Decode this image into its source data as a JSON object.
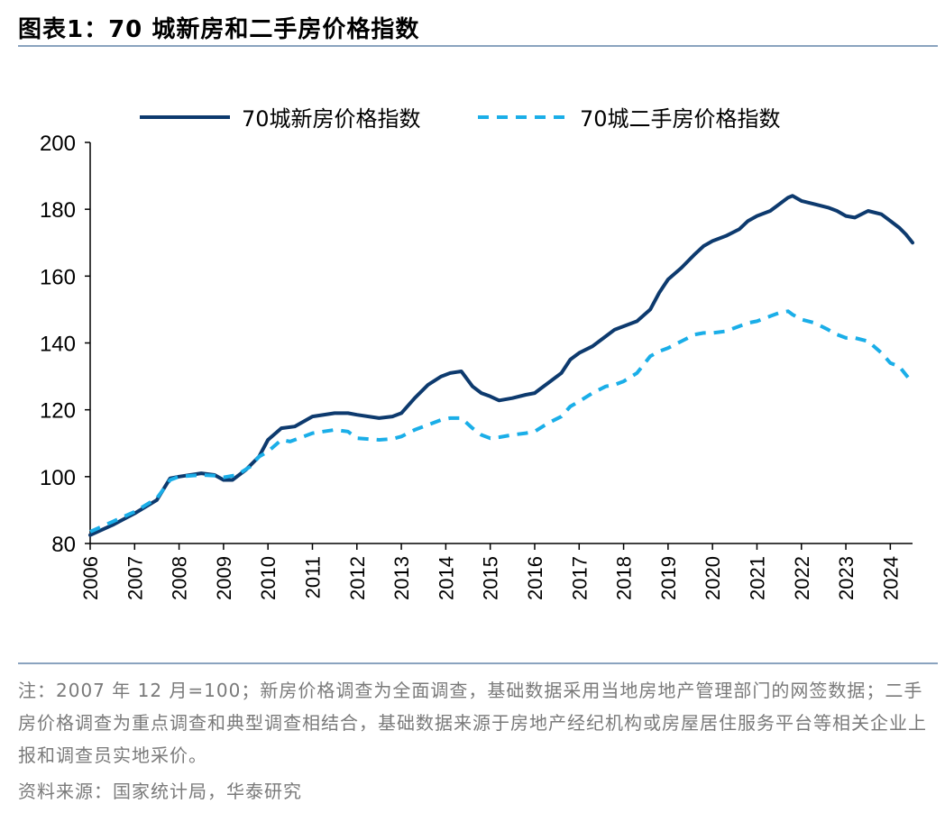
{
  "title": "图表1：70 城新房和二手房价格指数",
  "note": "注：2007 年 12 月=100；新房价格调查为全面调查，基础数据采用当地房地产管理部门的网签数据；二手房价格调查为重点调查和典型调查相结合，基础数据来源于房地产经纪机构或房屋居住服务平台等相关企业上报和调查员实地采价。",
  "source": "资料来源：国家统计局，华泰研究",
  "colors": {
    "new": "#0d3a6e",
    "second": "#1aaee8"
  },
  "chart_data": {
    "type": "line",
    "x_unit": "year",
    "xlim": [
      2006,
      2024.5
    ],
    "ylim": [
      80,
      200
    ],
    "yticks": [
      80,
      100,
      120,
      140,
      160,
      180,
      200
    ],
    "xticks": [
      "2006",
      "2007",
      "2008",
      "2009",
      "2010",
      "2011",
      "2012",
      "2013",
      "2014",
      "2015",
      "2016",
      "2017",
      "2018",
      "2019",
      "2020",
      "2021",
      "2022",
      "2023",
      "2024"
    ],
    "legend_position": "top",
    "series": [
      {
        "name": "70城新房价格指数",
        "style": "solid",
        "points": [
          [
            2006,
            82.5
          ],
          [
            2006.5,
            85.5
          ],
          [
            2007,
            89
          ],
          [
            2007.5,
            93
          ],
          [
            2007.8,
            99.5
          ],
          [
            2008,
            100
          ],
          [
            2008.5,
            101
          ],
          [
            2008.8,
            100.5
          ],
          [
            2009,
            99
          ],
          [
            2009.2,
            99
          ],
          [
            2009.5,
            102
          ],
          [
            2009.8,
            106
          ],
          [
            2010,
            111
          ],
          [
            2010.3,
            114.5
          ],
          [
            2010.6,
            115
          ],
          [
            2011,
            118
          ],
          [
            2011.5,
            119
          ],
          [
            2011.8,
            119
          ],
          [
            2012,
            118.5
          ],
          [
            2012.5,
            117.5
          ],
          [
            2012.8,
            118
          ],
          [
            2013,
            119
          ],
          [
            2013.3,
            123.5
          ],
          [
            2013.6,
            127.5
          ],
          [
            2013.9,
            130
          ],
          [
            2014.1,
            131
          ],
          [
            2014.35,
            131.5
          ],
          [
            2014.6,
            127
          ],
          [
            2014.8,
            125
          ],
          [
            2015,
            124
          ],
          [
            2015.2,
            122.8
          ],
          [
            2015.5,
            123.5
          ],
          [
            2015.8,
            124.5
          ],
          [
            2016,
            125
          ],
          [
            2016.1,
            126
          ],
          [
            2016.3,
            128
          ],
          [
            2016.6,
            131
          ],
          [
            2016.8,
            135
          ],
          [
            2017,
            137
          ],
          [
            2017.3,
            139
          ],
          [
            2017.6,
            142
          ],
          [
            2017.8,
            144
          ],
          [
            2018,
            145
          ],
          [
            2018.3,
            146.5
          ],
          [
            2018.6,
            150
          ],
          [
            2018.8,
            155
          ],
          [
            2019,
            159
          ],
          [
            2019.3,
            162.5
          ],
          [
            2019.6,
            166.5
          ],
          [
            2019.8,
            169
          ],
          [
            2020,
            170.5
          ],
          [
            2020.3,
            172
          ],
          [
            2020.6,
            174
          ],
          [
            2020.8,
            176.5
          ],
          [
            2021,
            178
          ],
          [
            2021.3,
            179.5
          ],
          [
            2021.5,
            181.5
          ],
          [
            2021.7,
            183.5
          ],
          [
            2021.8,
            184
          ],
          [
            2022,
            182.5
          ],
          [
            2022.3,
            181.5
          ],
          [
            2022.6,
            180.5
          ],
          [
            2022.8,
            179.5
          ],
          [
            2023,
            178
          ],
          [
            2023.2,
            177.5
          ],
          [
            2023.5,
            179.5
          ],
          [
            2023.8,
            178.5
          ],
          [
            2024,
            176.5
          ],
          [
            2024.2,
            174.5
          ],
          [
            2024.35,
            172.5
          ],
          [
            2024.5,
            170
          ]
        ]
      },
      {
        "name": "70城二手房价格指数",
        "style": "dashed",
        "points": [
          [
            2006,
            83.5
          ],
          [
            2006.5,
            86.5
          ],
          [
            2007,
            89.5
          ],
          [
            2007.5,
            93.5
          ],
          [
            2007.8,
            99
          ],
          [
            2008,
            100
          ],
          [
            2008.5,
            100.5
          ],
          [
            2008.8,
            100.3
          ],
          [
            2009,
            99.8
          ],
          [
            2009.3,
            100.5
          ],
          [
            2009.6,
            103
          ],
          [
            2009.8,
            106
          ],
          [
            2010,
            107.5
          ],
          [
            2010.3,
            111
          ],
          [
            2010.5,
            110.5
          ],
          [
            2011,
            113
          ],
          [
            2011.5,
            114
          ],
          [
            2011.8,
            113.5
          ],
          [
            2012,
            111.5
          ],
          [
            2012.5,
            111
          ],
          [
            2012.8,
            111.3
          ],
          [
            2013,
            112
          ],
          [
            2013.3,
            114
          ],
          [
            2013.6,
            115.5
          ],
          [
            2013.9,
            117
          ],
          [
            2014.1,
            117.5
          ],
          [
            2014.35,
            117.5
          ],
          [
            2014.6,
            114.5
          ],
          [
            2014.8,
            112.5
          ],
          [
            2015,
            111.5
          ],
          [
            2015.2,
            111.8
          ],
          [
            2015.5,
            112.5
          ],
          [
            2015.8,
            113
          ],
          [
            2016,
            113.5
          ],
          [
            2016.3,
            116
          ],
          [
            2016.6,
            118
          ],
          [
            2016.8,
            121
          ],
          [
            2017,
            122.5
          ],
          [
            2017.3,
            125
          ],
          [
            2017.6,
            127
          ],
          [
            2017.8,
            127.5
          ],
          [
            2018,
            128.5
          ],
          [
            2018.3,
            131
          ],
          [
            2018.6,
            136
          ],
          [
            2018.8,
            137.5
          ],
          [
            2019,
            138.5
          ],
          [
            2019.3,
            140.5
          ],
          [
            2019.6,
            142.5
          ],
          [
            2019.8,
            143
          ],
          [
            2020,
            143
          ],
          [
            2020.3,
            143.5
          ],
          [
            2020.6,
            145
          ],
          [
            2020.8,
            146
          ],
          [
            2021,
            146.5
          ],
          [
            2021.3,
            148
          ],
          [
            2021.5,
            149
          ],
          [
            2021.7,
            149.5
          ],
          [
            2021.8,
            148.5
          ],
          [
            2022,
            147
          ],
          [
            2022.3,
            146
          ],
          [
            2022.6,
            144
          ],
          [
            2022.8,
            142.5
          ],
          [
            2023,
            141.5
          ],
          [
            2023.2,
            141.5
          ],
          [
            2023.5,
            140.5
          ],
          [
            2023.8,
            137
          ],
          [
            2024,
            134
          ],
          [
            2024.2,
            133
          ],
          [
            2024.35,
            130.5
          ],
          [
            2024.5,
            128
          ]
        ]
      }
    ]
  }
}
